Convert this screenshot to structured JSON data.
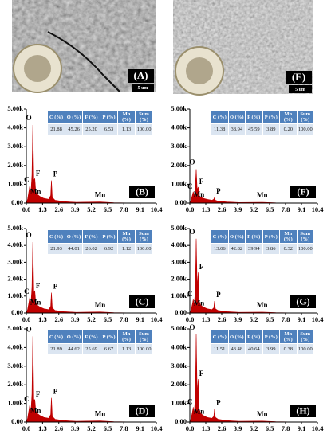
{
  "images": [
    {
      "label": "(A)",
      "scale_bar": "5 um"
    },
    {
      "label": "(E)",
      "scale_bar": "5 um"
    }
  ],
  "chart_data": [
    {
      "type": "area",
      "panel_label": "(B)",
      "color": "#c00000",
      "x": [
        0,
        0.1,
        0.2,
        0.28,
        0.36,
        0.45,
        0.52,
        0.6,
        0.68,
        0.76,
        0.9,
        1.1,
        1.4,
        1.8,
        1.95,
        2.01,
        2.08,
        2.3,
        3,
        4,
        5.9,
        7,
        8,
        10.4
      ],
      "values": [
        0,
        200,
        600,
        950,
        500,
        1500,
        4150,
        1200,
        1300,
        600,
        450,
        350,
        250,
        200,
        400,
        1200,
        300,
        150,
        80,
        40,
        60,
        20,
        10,
        0
      ],
      "xlim": [
        0,
        10.4
      ],
      "xticks": [
        {
          "value": 0,
          "label": "0.0"
        },
        1.3,
        2.6,
        3.9,
        5.2,
        6.5,
        7.8,
        9.1,
        10.4
      ],
      "ylim": [
        0,
        5000
      ],
      "yticks": [
        {
          "value": 0,
          "label": "0.00"
        },
        {
          "value": 1000,
          "label": "1.00k"
        },
        {
          "value": 2000,
          "label": "2.00k"
        },
        {
          "value": 3000,
          "label": "3.00k"
        },
        {
          "value": 4000,
          "label": "4.00k"
        },
        {
          "value": 5000,
          "label": "5.00k"
        }
      ],
      "annotations": [
        "O",
        "F",
        "P",
        "Mn",
        "C",
        "Mn"
      ],
      "table": {
        "headers": [
          "C (%)",
          "O (%)",
          "F (%)",
          "P (%)",
          "Mn (%)",
          "Sum (%)"
        ],
        "rows": [
          [
            "21.88",
            "45.26",
            "25.20",
            "6.53",
            "1.13",
            "100.00"
          ]
        ]
      }
    },
    {
      "type": "area",
      "panel_label": "(C)",
      "color": "#c00000",
      "x": [
        0,
        0.1,
        0.2,
        0.28,
        0.36,
        0.45,
        0.52,
        0.6,
        0.68,
        0.76,
        0.9,
        1.1,
        1.4,
        1.8,
        1.95,
        2.01,
        2.08,
        2.3,
        3,
        4,
        5.9,
        7,
        8,
        10.4
      ],
      "values": [
        0,
        200,
        600,
        950,
        500,
        1500,
        4200,
        1200,
        1300,
        600,
        450,
        350,
        250,
        200,
        400,
        1200,
        300,
        150,
        80,
        40,
        60,
        20,
        10,
        0
      ],
      "xlim": [
        0,
        10.4
      ],
      "xticks": [
        {
          "value": 0,
          "label": "0.0"
        },
        1.3,
        2.6,
        3.9,
        5.2,
        6.5,
        7.8,
        9.1,
        10.4
      ],
      "ylim": [
        0,
        5000
      ],
      "yticks": [
        {
          "value": 0,
          "label": "0.00"
        },
        {
          "value": 1000,
          "label": "1.00k"
        },
        {
          "value": 2000,
          "label": "2.00k"
        },
        {
          "value": 3000,
          "label": "3.00k"
        },
        {
          "value": 4000,
          "label": "4.00k"
        },
        {
          "value": 5000,
          "label": "5.00k"
        }
      ],
      "annotations": [
        "O",
        "F",
        "P",
        "Mn",
        "C",
        "Mn"
      ],
      "table": {
        "headers": [
          "C (%)",
          "O (%)",
          "F (%)",
          "P (%)",
          "Mn (%)",
          "Sum (%)"
        ],
        "rows": [
          [
            "21.93",
            "44.01",
            "26.02",
            "6.92",
            "1.12",
            "100.00"
          ]
        ]
      }
    },
    {
      "type": "area",
      "panel_label": "(D)",
      "color": "#c00000",
      "x": [
        0,
        0.1,
        0.2,
        0.28,
        0.36,
        0.45,
        0.52,
        0.6,
        0.68,
        0.76,
        0.9,
        1.1,
        1.4,
        1.8,
        1.95,
        2.01,
        2.08,
        2.3,
        3,
        4,
        5.9,
        7,
        8,
        10.4
      ],
      "values": [
        0,
        200,
        600,
        950,
        500,
        1500,
        4600,
        1200,
        1200,
        600,
        450,
        350,
        250,
        200,
        400,
        1300,
        300,
        150,
        80,
        40,
        60,
        20,
        10,
        0
      ],
      "xlim": [
        0,
        10.4
      ],
      "xticks": [
        {
          "value": 0,
          "label": "0.0"
        },
        1.3,
        2.6,
        3.9,
        5.2,
        6.5,
        7.8,
        9.1,
        10.4
      ],
      "ylim": [
        0,
        5000
      ],
      "yticks": [
        {
          "value": 0,
          "label": "0.00"
        },
        {
          "value": 1000,
          "label": "1.00k"
        },
        {
          "value": 2000,
          "label": "2.00k"
        },
        {
          "value": 3000,
          "label": "3.00k"
        },
        {
          "value": 4000,
          "label": "4.00k"
        },
        {
          "value": 5000,
          "label": "5.00k"
        }
      ],
      "annotations": [
        "O",
        "F",
        "P",
        "Mn",
        "C",
        "Mn"
      ],
      "table": {
        "headers": [
          "C (%)",
          "O (%)",
          "F (%)",
          "P (%)",
          "Mn (%)",
          "Sum (%)"
        ],
        "rows": [
          [
            "21.89",
            "44.62",
            "25.69",
            "6.67",
            "1.13",
            "100.00"
          ]
        ]
      }
    },
    {
      "type": "area",
      "panel_label": "(F)",
      "color": "#c00000",
      "x": [
        0,
        0.1,
        0.2,
        0.28,
        0.36,
        0.45,
        0.52,
        0.6,
        0.68,
        0.76,
        0.9,
        1.1,
        1.4,
        1.8,
        1.95,
        2.01,
        2.08,
        2.3,
        3,
        4,
        5.9,
        7,
        8,
        10.4
      ],
      "values": [
        0,
        150,
        400,
        600,
        350,
        900,
        1800,
        700,
        850,
        400,
        300,
        250,
        200,
        150,
        200,
        300,
        150,
        100,
        60,
        30,
        40,
        15,
        8,
        0
      ],
      "xlim": [
        0,
        10.4
      ],
      "xticks": [
        {
          "value": 0,
          "label": "0.0"
        },
        1.3,
        2.6,
        3.9,
        5.2,
        6.5,
        7.8,
        9.1,
        10.4
      ],
      "ylim": [
        0,
        5000
      ],
      "yticks": [
        {
          "value": 0,
          "label": "0.00"
        },
        {
          "value": 1000,
          "label": "1.00k"
        },
        {
          "value": 2000,
          "label": "2.00k"
        },
        {
          "value": 3000,
          "label": "3.00k"
        },
        {
          "value": 4000,
          "label": "4.00k"
        },
        {
          "value": 5000,
          "label": "5.00k"
        }
      ],
      "annotations": [
        "O",
        "F",
        "P",
        "Mn",
        "C",
        "Mn"
      ],
      "table": {
        "headers": [
          "C (%)",
          "O (%)",
          "F (%)",
          "P (%)",
          "Mn (%)",
          "Sum (%)"
        ],
        "rows": [
          [
            "11.38",
            "38.94",
            "45.59",
            "3.89",
            "0.20",
            "100.00"
          ]
        ]
      }
    },
    {
      "type": "area",
      "panel_label": "(G)",
      "color": "#c00000",
      "x": [
        0,
        0.1,
        0.2,
        0.28,
        0.36,
        0.45,
        0.52,
        0.6,
        0.68,
        0.76,
        0.9,
        1.1,
        1.4,
        1.8,
        1.95,
        2.01,
        2.08,
        2.3,
        3,
        4,
        5.9,
        7,
        8,
        10.4
      ],
      "values": [
        0,
        200,
        500,
        800,
        450,
        1400,
        4400,
        1500,
        2400,
        700,
        450,
        350,
        250,
        200,
        300,
        700,
        250,
        150,
        80,
        40,
        50,
        20,
        10,
        0
      ],
      "xlim": [
        0,
        10.4
      ],
      "xticks": [
        {
          "value": 0,
          "label": "0.0"
        },
        1.3,
        2.6,
        3.9,
        5.2,
        6.5,
        7.8,
        9.1,
        10.4
      ],
      "ylim": [
        0,
        5000
      ],
      "yticks": [
        {
          "value": 0,
          "label": "0.00"
        },
        {
          "value": 1000,
          "label": "1.00k"
        },
        {
          "value": 2000,
          "label": "2.00k"
        },
        {
          "value": 3000,
          "label": "3.00k"
        },
        {
          "value": 4000,
          "label": "4.00k"
        },
        {
          "value": 5000,
          "label": "5.00k"
        }
      ],
      "annotations": [
        "O",
        "F",
        "P",
        "Mn",
        "C",
        "Mn"
      ],
      "table": {
        "headers": [
          "C (%)",
          "O (%)",
          "F (%)",
          "P (%)",
          "Mn (%)",
          "Sum (%)"
        ],
        "rows": [
          [
            "13.06",
            "42.82",
            "39.94",
            "3.86",
            "0.32",
            "100.00"
          ]
        ]
      }
    },
    {
      "type": "area",
      "panel_label": "(H)",
      "color": "#c00000",
      "x": [
        0,
        0.1,
        0.2,
        0.28,
        0.36,
        0.45,
        0.52,
        0.6,
        0.68,
        0.76,
        0.9,
        1.1,
        1.4,
        1.8,
        1.95,
        2.01,
        2.08,
        2.3,
        3,
        4,
        5.9,
        7,
        8,
        10.4
      ],
      "values": [
        0,
        200,
        500,
        800,
        450,
        1400,
        4700,
        1500,
        2300,
        700,
        450,
        350,
        250,
        200,
        300,
        700,
        250,
        150,
        80,
        40,
        50,
        20,
        10,
        0
      ],
      "xlim": [
        0,
        10.4
      ],
      "xticks": [
        {
          "value": 0,
          "label": "0.0"
        },
        1.3,
        2.6,
        3.9,
        5.2,
        6.5,
        7.8,
        9.1,
        10.4
      ],
      "ylim": [
        0,
        5000
      ],
      "yticks": [
        {
          "value": 0,
          "label": "0.00"
        },
        {
          "value": 1000,
          "label": "1.00k"
        },
        {
          "value": 2000,
          "label": "2.00k"
        },
        {
          "value": 3000,
          "label": "3.00k"
        },
        {
          "value": 4000,
          "label": "4.00k"
        },
        {
          "value": 5000,
          "label": "5.00k"
        }
      ],
      "annotations": [
        "O",
        "F",
        "P",
        "Mn",
        "C",
        "Mn"
      ],
      "table": {
        "headers": [
          "C (%)",
          "O (%)",
          "F (%)",
          "P (%)",
          "Mn (%)",
          "Sum (%)"
        ],
        "rows": [
          [
            "11.51",
            "43.48",
            "40.64",
            "3.99",
            "0.38",
            "100.00"
          ]
        ]
      }
    }
  ]
}
